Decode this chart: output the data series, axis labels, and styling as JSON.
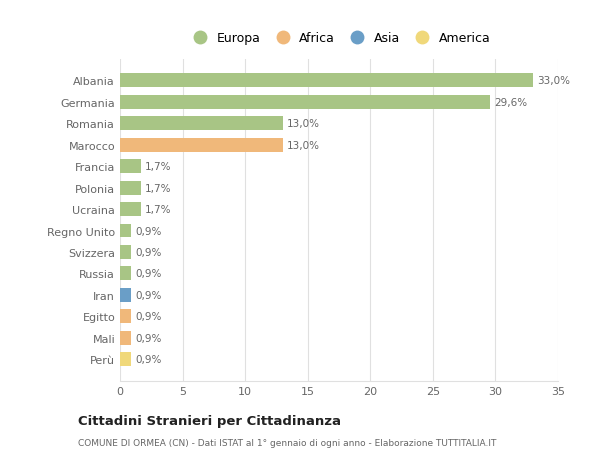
{
  "categories": [
    "Albania",
    "Germania",
    "Romania",
    "Marocco",
    "Francia",
    "Polonia",
    "Ucraina",
    "Regno Unito",
    "Svizzera",
    "Russia",
    "Iran",
    "Egitto",
    "Mali",
    "Perù"
  ],
  "values": [
    33.0,
    29.6,
    13.0,
    13.0,
    1.7,
    1.7,
    1.7,
    0.9,
    0.9,
    0.9,
    0.9,
    0.9,
    0.9,
    0.9
  ],
  "labels": [
    "33,0%",
    "29,6%",
    "13,0%",
    "13,0%",
    "1,7%",
    "1,7%",
    "1,7%",
    "0,9%",
    "0,9%",
    "0,9%",
    "0,9%",
    "0,9%",
    "0,9%",
    "0,9%"
  ],
  "colors": [
    "#a8c585",
    "#a8c585",
    "#a8c585",
    "#f0b87a",
    "#a8c585",
    "#a8c585",
    "#a8c585",
    "#a8c585",
    "#a8c585",
    "#a8c585",
    "#6a9ec7",
    "#f0b87a",
    "#f0b87a",
    "#f0d87a"
  ],
  "legend_labels": [
    "Europa",
    "Africa",
    "Asia",
    "America"
  ],
  "legend_colors": [
    "#a8c585",
    "#f0b87a",
    "#6a9ec7",
    "#f0d87a"
  ],
  "title": "Cittadini Stranieri per Cittadinanza",
  "subtitle": "COMUNE DI ORMEA (CN) - Dati ISTAT al 1° gennaio di ogni anno - Elaborazione TUTTITALIA.IT",
  "xlim": [
    0,
    35
  ],
  "xticks": [
    0,
    5,
    10,
    15,
    20,
    25,
    30,
    35
  ],
  "background_color": "#ffffff",
  "grid_color": "#e0e0e0",
  "bar_height": 0.65,
  "text_color": "#666666",
  "title_color": "#222222",
  "subtitle_color": "#666666"
}
